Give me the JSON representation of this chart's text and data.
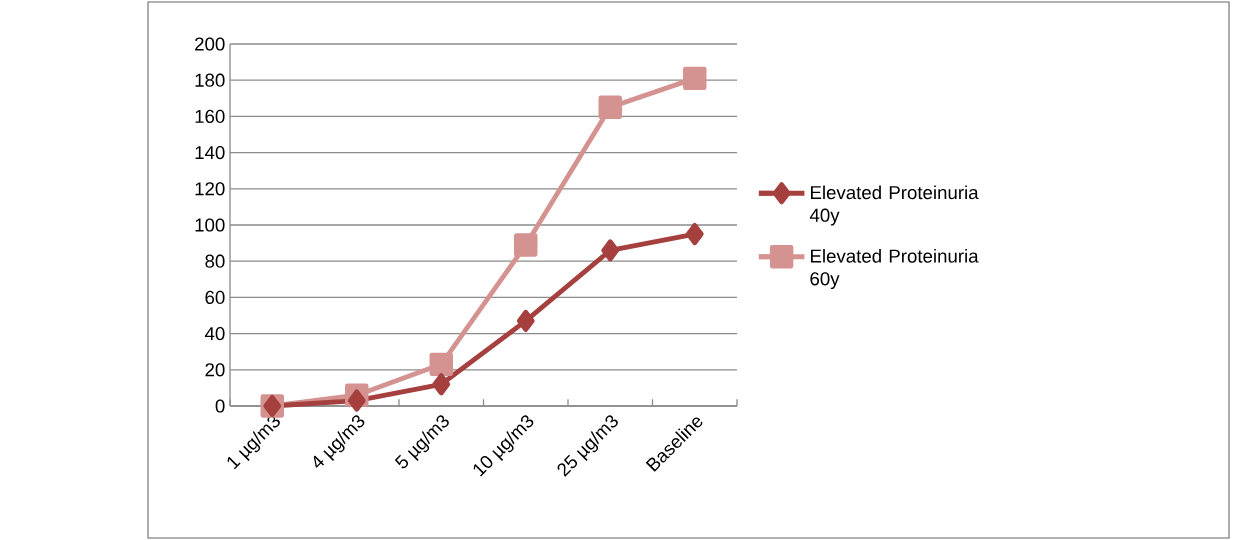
{
  "chart_data": {
    "type": "line",
    "categories": [
      "1 µg/m3",
      "4 µg/m3",
      "5 µg/m3",
      "10 µg/m3",
      "25 µg/m3",
      "Baseline"
    ],
    "series": [
      {
        "name": "Elevated Proteinuria 40y",
        "color": "#a5403e",
        "marker": "diamond",
        "values": [
          0,
          3,
          12,
          47,
          86,
          95
        ]
      },
      {
        "name": "Elevated Proteinuria 60y",
        "color": "#d49290",
        "marker": "square",
        "values": [
          0,
          6,
          23,
          89,
          165,
          181
        ]
      }
    ],
    "ylim": [
      0,
      200
    ],
    "yticks": [
      0,
      20,
      40,
      60,
      80,
      100,
      120,
      140,
      160,
      180,
      200
    ],
    "grid": "y",
    "legend": "right"
  }
}
